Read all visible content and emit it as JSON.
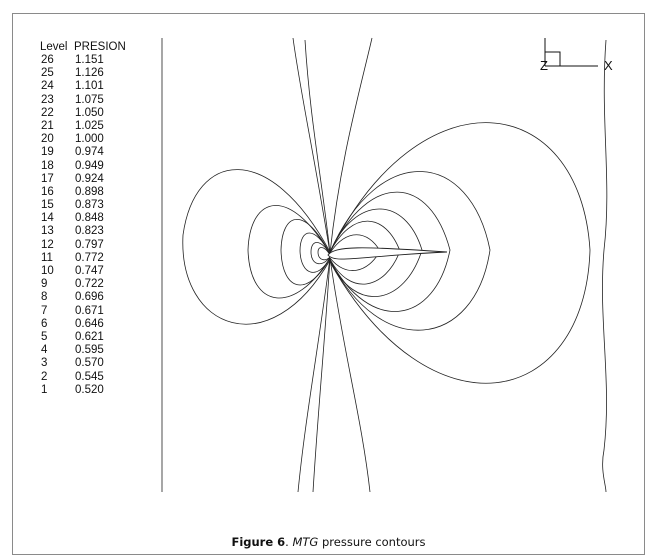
{
  "legend": {
    "header_level": "Level",
    "header_var": "PRESION",
    "rows": [
      {
        "level": "26",
        "value": "1.151"
      },
      {
        "level": "25",
        "value": "1.126"
      },
      {
        "level": "24",
        "value": "1.101"
      },
      {
        "level": "23",
        "value": "1.075"
      },
      {
        "level": "22",
        "value": "1.050"
      },
      {
        "level": "21",
        "value": "1.025"
      },
      {
        "level": "20",
        "value": "1.000"
      },
      {
        "level": "19",
        "value": "0.974"
      },
      {
        "level": "18",
        "value": "0.949"
      },
      {
        "level": "17",
        "value": "0.924"
      },
      {
        "level": "16",
        "value": "0.898"
      },
      {
        "level": "15",
        "value": "0.873"
      },
      {
        "level": "14",
        "value": "0.848"
      },
      {
        "level": "13",
        "value": "0.823"
      },
      {
        "level": "12",
        "value": "0.797"
      },
      {
        "level": "11",
        "value": "0.772"
      },
      {
        "level": "10",
        "value": "0.747"
      },
      {
        "level": "9",
        "value": "0.722"
      },
      {
        "level": "8",
        "value": "0.696"
      },
      {
        "level": "7",
        "value": "0.671"
      },
      {
        "level": "6",
        "value": "0.646"
      },
      {
        "level": "5",
        "value": "0.621"
      },
      {
        "level": "4",
        "value": "0.595"
      },
      {
        "level": "3",
        "value": "0.570"
      },
      {
        "level": "2",
        "value": "0.545"
      },
      {
        "level": "1",
        "value": "0.520"
      }
    ]
  },
  "axis": {
    "x_label": "X",
    "z_label": "Z"
  },
  "caption": {
    "label": "Figure 6",
    "separator": ". ",
    "italic": "MTG",
    "rest": " pressure contours"
  },
  "colors": {
    "line": "#222222",
    "frame": "#8a8a8a"
  }
}
